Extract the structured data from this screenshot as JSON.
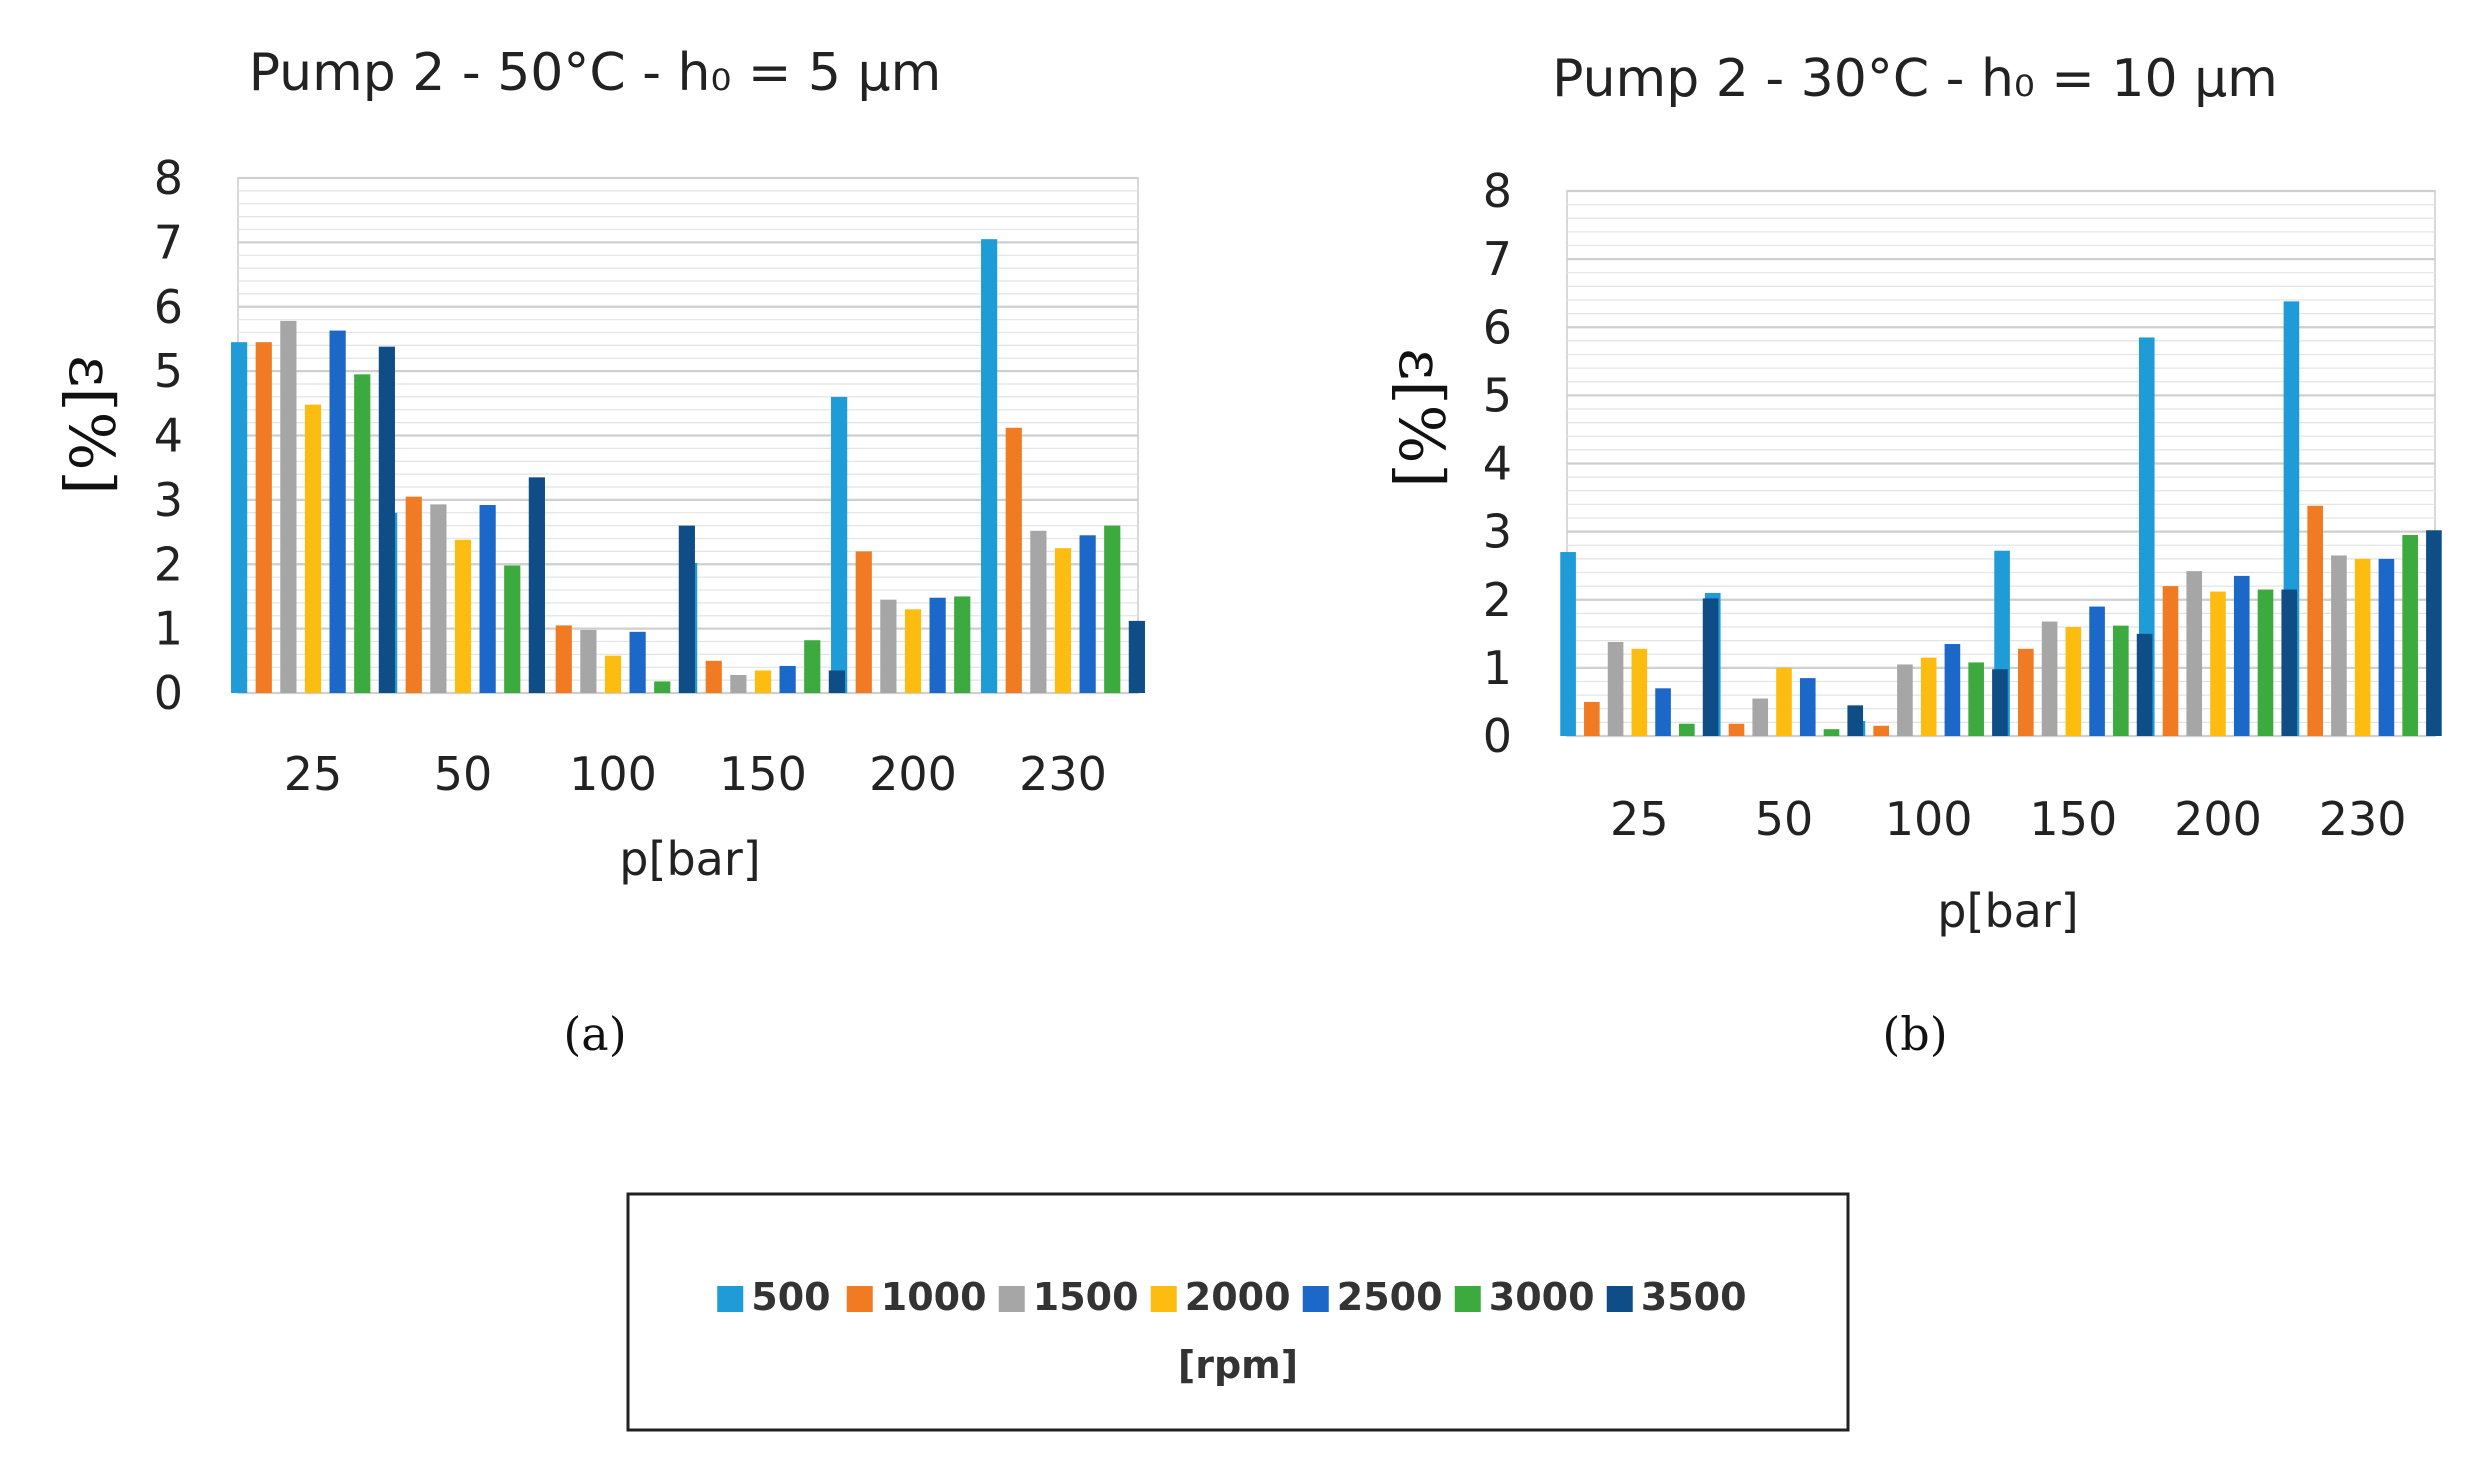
{
  "chart_data": [
    {
      "type": "bar",
      "title": "Pump 2 - 50°C - h₀ = 5 µm",
      "xlabel": "p[bar]",
      "ylabel": "ε[%]",
      "panel_label": "(a)",
      "ylim": [
        0,
        8
      ],
      "yticks": [
        "0",
        "1",
        "2",
        "3",
        "4",
        "5",
        "6",
        "7",
        "8"
      ],
      "categories": [
        "25",
        "50",
        "100",
        "150",
        "200",
        "230"
      ],
      "grid": true,
      "series": [
        {
          "name": "500",
          "color": "#1f9bd7",
          "values": [
            5.45,
            2.8,
            0.0,
            2.02,
            4.6,
            7.05
          ]
        },
        {
          "name": "1000",
          "color": "#f07b23",
          "values": [
            5.45,
            3.05,
            1.05,
            0.5,
            2.2,
            4.12
          ]
        },
        {
          "name": "1500",
          "color": "#a6a6a6",
          "values": [
            5.78,
            2.93,
            0.98,
            0.28,
            1.45,
            2.52
          ]
        },
        {
          "name": "2000",
          "color": "#fdbd10",
          "values": [
            4.48,
            2.38,
            0.58,
            0.35,
            1.3,
            2.25
          ]
        },
        {
          "name": "2500",
          "color": "#1c68c8",
          "values": [
            5.63,
            2.92,
            0.95,
            0.42,
            1.48,
            2.45
          ]
        },
        {
          "name": "3000",
          "color": "#3daa3f",
          "values": [
            4.95,
            1.98,
            0.18,
            0.82,
            1.5,
            2.6
          ]
        },
        {
          "name": "3500",
          "color": "#0e4d86",
          "values": [
            5.38,
            3.35,
            2.6,
            0.35,
            0.0,
            1.12
          ]
        }
      ]
    },
    {
      "type": "bar",
      "title": "Pump 2 - 30°C - h₀ = 10 µm",
      "xlabel": "p[bar]",
      "ylabel": "ε[%]",
      "panel_label": "(b)",
      "ylim": [
        0,
        8
      ],
      "yticks": [
        "0",
        "1",
        "2",
        "3",
        "4",
        "5",
        "6",
        "7",
        "8"
      ],
      "categories": [
        "25",
        "50",
        "100",
        "150",
        "200",
        "230"
      ],
      "grid": true,
      "series": [
        {
          "name": "500",
          "color": "#1f9bd7",
          "values": [
            2.7,
            2.1,
            0.22,
            2.72,
            5.85,
            6.38
          ]
        },
        {
          "name": "1000",
          "color": "#f07b23",
          "values": [
            0.5,
            0.18,
            0.15,
            1.28,
            2.2,
            3.38
          ]
        },
        {
          "name": "1500",
          "color": "#a6a6a6",
          "values": [
            1.38,
            0.55,
            1.05,
            1.68,
            2.42,
            2.65
          ]
        },
        {
          "name": "2000",
          "color": "#fdbd10",
          "values": [
            1.28,
            1.0,
            1.15,
            1.6,
            2.12,
            2.6
          ]
        },
        {
          "name": "2500",
          "color": "#1c68c8",
          "values": [
            0.7,
            0.85,
            1.35,
            1.9,
            2.35,
            2.6
          ]
        },
        {
          "name": "3000",
          "color": "#3daa3f",
          "values": [
            0.18,
            0.1,
            1.08,
            1.62,
            2.15,
            2.95
          ]
        },
        {
          "name": "3500",
          "color": "#0e4d86",
          "values": [
            2.02,
            0.45,
            0.98,
            1.5,
            2.15,
            3.02
          ]
        }
      ]
    }
  ],
  "legend": {
    "unit": "[rpm]",
    "items": [
      {
        "label": "500",
        "color": "#1f9bd7"
      },
      {
        "label": "1000",
        "color": "#f07b23"
      },
      {
        "label": "1500",
        "color": "#a6a6a6"
      },
      {
        "label": "2000",
        "color": "#fdbd10"
      },
      {
        "label": "2500",
        "color": "#1c68c8"
      },
      {
        "label": "3000",
        "color": "#3daa3f"
      },
      {
        "label": "3500",
        "color": "#0e4d86"
      }
    ]
  }
}
